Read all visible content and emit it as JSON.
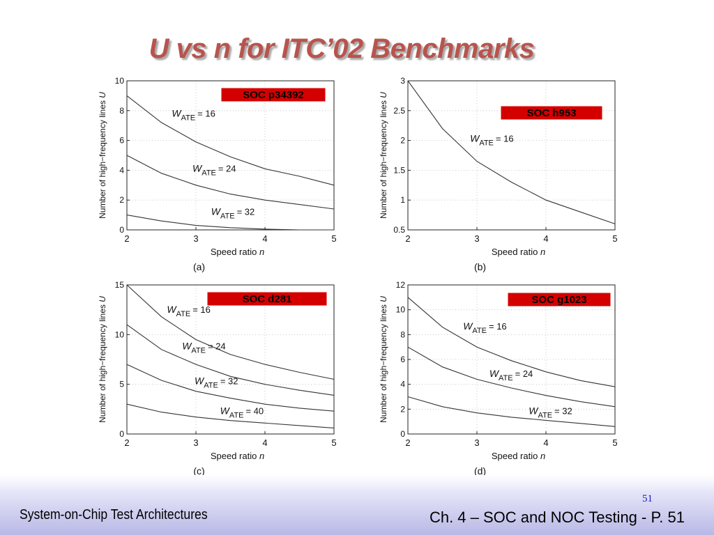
{
  "slide": {
    "title": "U vs n for ITC’02 Benchmarks",
    "footer_left": "System-on-Chip Test Architectures",
    "footer_right": "Ch. 4 – SOC and NOC Testing - P. 51",
    "page_number": "51"
  },
  "colors": {
    "title": "#b8544d",
    "soc_label_bg": "#d40000",
    "curve": "#333333",
    "footer_band": "#b8b8e6",
    "page_number": "#2020c0"
  },
  "chart_data": [
    {
      "type": "line",
      "soc_label": "SOC p34392",
      "panel_caption": "(a)",
      "xlabel": "Speed ratio",
      "xvar": "n",
      "ylabel": "Number of high−frequency lines",
      "yvar": "U",
      "xlim": [
        2,
        5
      ],
      "ylim": [
        0,
        10
      ],
      "xticks": [
        2,
        3,
        4,
        5
      ],
      "yticks": [
        0,
        2,
        4,
        6,
        8,
        10
      ],
      "grid": true,
      "x": [
        2,
        2.5,
        3,
        3.5,
        4,
        4.5,
        5
      ],
      "series": [
        {
          "name": "W_ATE = 16",
          "label_main": "W",
          "label_sub": "ATE",
          "label_value": "= 16",
          "label_at": [
            2.65,
            7.6
          ],
          "values": [
            9.0,
            7.2,
            5.9,
            4.9,
            4.1,
            3.6,
            3.0
          ]
        },
        {
          "name": "W_ATE = 24",
          "label_main": "W",
          "label_sub": "ATE",
          "label_value": "= 24",
          "label_at": [
            2.95,
            3.9
          ],
          "values": [
            5.0,
            3.8,
            3.0,
            2.4,
            2.0,
            1.7,
            1.4
          ]
        },
        {
          "name": "W_ATE = 32",
          "label_main": "W",
          "label_sub": "ATE",
          "label_value": "= 32",
          "label_at": [
            3.22,
            1.0
          ],
          "values": [
            1.0,
            0.6,
            0.3,
            0.15,
            0.05,
            0.0,
            0.0
          ]
        }
      ]
    },
    {
      "type": "line",
      "soc_label": "SOC h953",
      "panel_caption": "(b)",
      "xlabel": "Speed ratio",
      "xvar": "n",
      "ylabel": "Number of high−frequency lines",
      "yvar": "U",
      "xlim": [
        2,
        5
      ],
      "ylim": [
        0.5,
        3
      ],
      "xticks": [
        2,
        3,
        4,
        5
      ],
      "yticks": [
        0.5,
        1,
        1.5,
        2,
        2.5,
        3
      ],
      "grid": true,
      "x": [
        2,
        2.5,
        3,
        3.5,
        4,
        4.5,
        5
      ],
      "series": [
        {
          "name": "W_ATE = 16",
          "label_main": "W",
          "label_sub": "ATE",
          "label_value": "= 16",
          "label_at": [
            2.9,
            1.98
          ],
          "values": [
            3.0,
            2.2,
            1.65,
            1.3,
            1.0,
            0.8,
            0.6
          ]
        }
      ]
    },
    {
      "type": "line",
      "soc_label": "SOC d281",
      "panel_caption": "(c)",
      "xlabel": "Speed ratio",
      "xvar": "n",
      "ylabel": "Number of high−frequency lines",
      "yvar": "U",
      "xlim": [
        2,
        5
      ],
      "ylim": [
        0,
        15
      ],
      "xticks": [
        2,
        3,
        4,
        5
      ],
      "yticks": [
        0,
        5,
        10,
        15
      ],
      "grid": true,
      "x": [
        2,
        2.5,
        3,
        3.5,
        4,
        4.5,
        5
      ],
      "series": [
        {
          "name": "W_ATE = 16",
          "label_main": "W",
          "label_sub": "ATE",
          "label_value": "= 16",
          "label_at": [
            2.58,
            12.2
          ],
          "values": [
            15.0,
            11.8,
            9.5,
            8.0,
            7.0,
            6.2,
            5.5
          ]
        },
        {
          "name": "W_ATE = 24",
          "label_main": "W",
          "label_sub": "ATE",
          "label_value": "= 24",
          "label_at": [
            2.8,
            8.5
          ],
          "values": [
            11.0,
            8.5,
            7.0,
            5.8,
            5.0,
            4.4,
            3.9
          ]
        },
        {
          "name": "W_ATE = 32",
          "label_main": "W",
          "label_sub": "ATE",
          "label_value": "= 32",
          "label_at": [
            2.98,
            5.0
          ],
          "values": [
            7.0,
            5.4,
            4.3,
            3.6,
            3.0,
            2.6,
            2.3
          ]
        },
        {
          "name": "W_ATE = 40",
          "label_main": "W",
          "label_sub": "ATE",
          "label_value": "= 40",
          "label_at": [
            3.35,
            2.0
          ],
          "values": [
            3.0,
            2.2,
            1.7,
            1.35,
            1.1,
            0.85,
            0.6
          ]
        }
      ]
    },
    {
      "type": "line",
      "soc_label": "SOC g1023",
      "panel_caption": "(d)",
      "xlabel": "Speed ratio",
      "xvar": "n",
      "ylabel": "Number of high−frequency lines",
      "yvar": "U",
      "xlim": [
        2,
        5
      ],
      "ylim": [
        0,
        12
      ],
      "xticks": [
        2,
        3,
        4,
        5
      ],
      "yticks": [
        0,
        2,
        4,
        6,
        8,
        10,
        12
      ],
      "grid": true,
      "x": [
        2,
        2.5,
        3,
        3.5,
        4,
        4.5,
        5
      ],
      "series": [
        {
          "name": "W_ATE = 16",
          "label_main": "W",
          "label_sub": "ATE",
          "label_value": "= 16",
          "label_at": [
            2.8,
            8.4
          ],
          "values": [
            11.0,
            8.6,
            7.0,
            5.9,
            5.0,
            4.3,
            3.8
          ]
        },
        {
          "name": "W_ATE = 24",
          "label_main": "W",
          "label_sub": "ATE",
          "label_value": "= 24",
          "label_at": [
            3.18,
            4.6
          ],
          "values": [
            7.0,
            5.4,
            4.4,
            3.7,
            3.1,
            2.6,
            2.2
          ]
        },
        {
          "name": "W_ATE = 32",
          "label_main": "W",
          "label_sub": "ATE",
          "label_value": "= 32",
          "label_at": [
            3.75,
            1.6
          ],
          "values": [
            3.0,
            2.2,
            1.7,
            1.35,
            1.1,
            0.85,
            0.6
          ]
        }
      ]
    }
  ]
}
